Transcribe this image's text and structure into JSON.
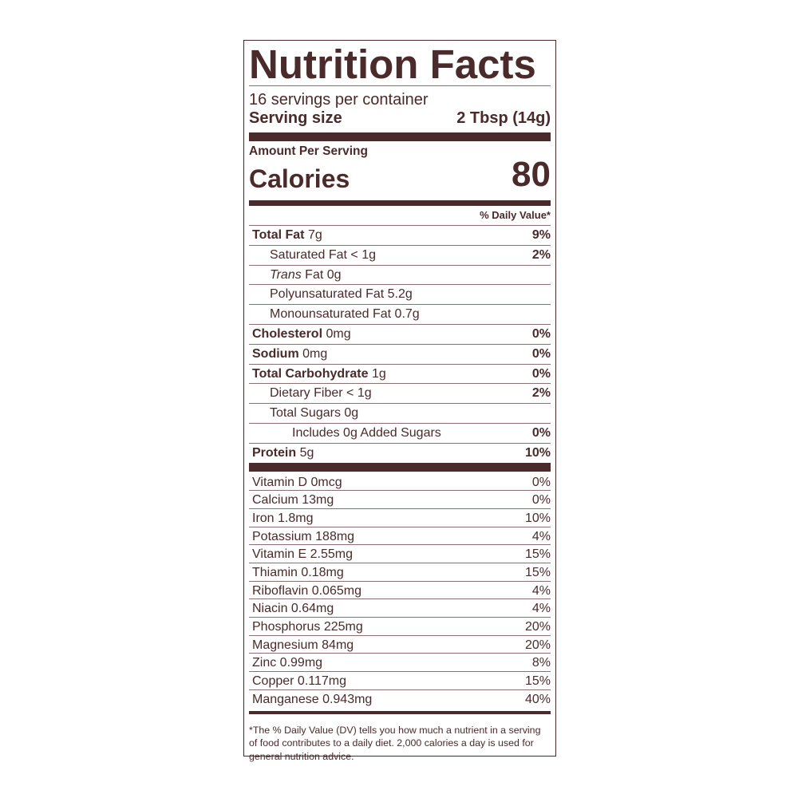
{
  "title": "Nutrition Facts",
  "servings_per_container": "16 servings per container",
  "serving_size_label": "Serving size",
  "serving_size_value": "2 Tbsp (14g)",
  "amount_per_serving": "Amount Per Serving",
  "calories_label": "Calories",
  "calories_value": "80",
  "daily_value_header": "% Daily Value*",
  "nutrients": [
    {
      "name": "Total Fat",
      "amount": "7g",
      "dv": "9%",
      "bold": true,
      "indent": 0
    },
    {
      "name": "Saturated Fat",
      "amount": "< 1g",
      "dv": "2%",
      "bold": false,
      "indent": 1
    },
    {
      "name": "Trans",
      "amount": "Fat 0g",
      "dv": "",
      "bold": false,
      "indent": 1,
      "italic": true
    },
    {
      "name": "Polyunsaturated Fat",
      "amount": "5.2g",
      "dv": "",
      "bold": false,
      "indent": 1
    },
    {
      "name": "Monounsaturated Fat",
      "amount": "0.7g",
      "dv": "",
      "bold": false,
      "indent": 1
    },
    {
      "name": "Cholesterol",
      "amount": "0mg",
      "dv": "0%",
      "bold": true,
      "indent": 0
    },
    {
      "name": "Sodium",
      "amount": "0mg",
      "dv": "0%",
      "bold": true,
      "indent": 0
    },
    {
      "name": "Total Carbohydrate",
      "amount": "1g",
      "dv": "0%",
      "bold": true,
      "indent": 0
    },
    {
      "name": "Dietary Fiber",
      "amount": "< 1g",
      "dv": "2%",
      "bold": false,
      "indent": 1
    },
    {
      "name": "Total Sugars",
      "amount": "0g",
      "dv": "",
      "bold": false,
      "indent": 1
    },
    {
      "name": "Includes 0g Added Sugars",
      "amount": "",
      "dv": "0%",
      "bold": false,
      "indent": 2
    },
    {
      "name": "Protein",
      "amount": "5g",
      "dv": "10%",
      "bold": true,
      "indent": 0
    }
  ],
  "vitamins": [
    {
      "label": "Vitamin D 0mcg",
      "dv": "0%"
    },
    {
      "label": "Calcium 13mg",
      "dv": "0%"
    },
    {
      "label": "Iron 1.8mg",
      "dv": "10%"
    },
    {
      "label": "Potassium 188mg",
      "dv": "4%"
    },
    {
      "label": "Vitamin E 2.55mg",
      "dv": "15%"
    },
    {
      "label": "Thiamin 0.18mg",
      "dv": "15%"
    },
    {
      "label": "Riboflavin 0.065mg",
      "dv": "4%"
    },
    {
      "label": "Niacin 0.64mg",
      "dv": "4%"
    },
    {
      "label": "Phosphorus 225mg",
      "dv": "20%"
    },
    {
      "label": "Magnesium 84mg",
      "dv": "20%"
    },
    {
      "label": "Zinc 0.99mg",
      "dv": "8%"
    },
    {
      "label": "Copper 0.117mg",
      "dv": "15%"
    },
    {
      "label": "Manganese 0.943mg",
      "dv": "40%"
    }
  ],
  "footnote": "*The % Daily Value (DV) tells you how much a nutrient in a serving of food contributes to a daily diet. 2,000 calories a day is used for general nutrition advice.",
  "colors": {
    "ink": "#4a2a2a"
  }
}
